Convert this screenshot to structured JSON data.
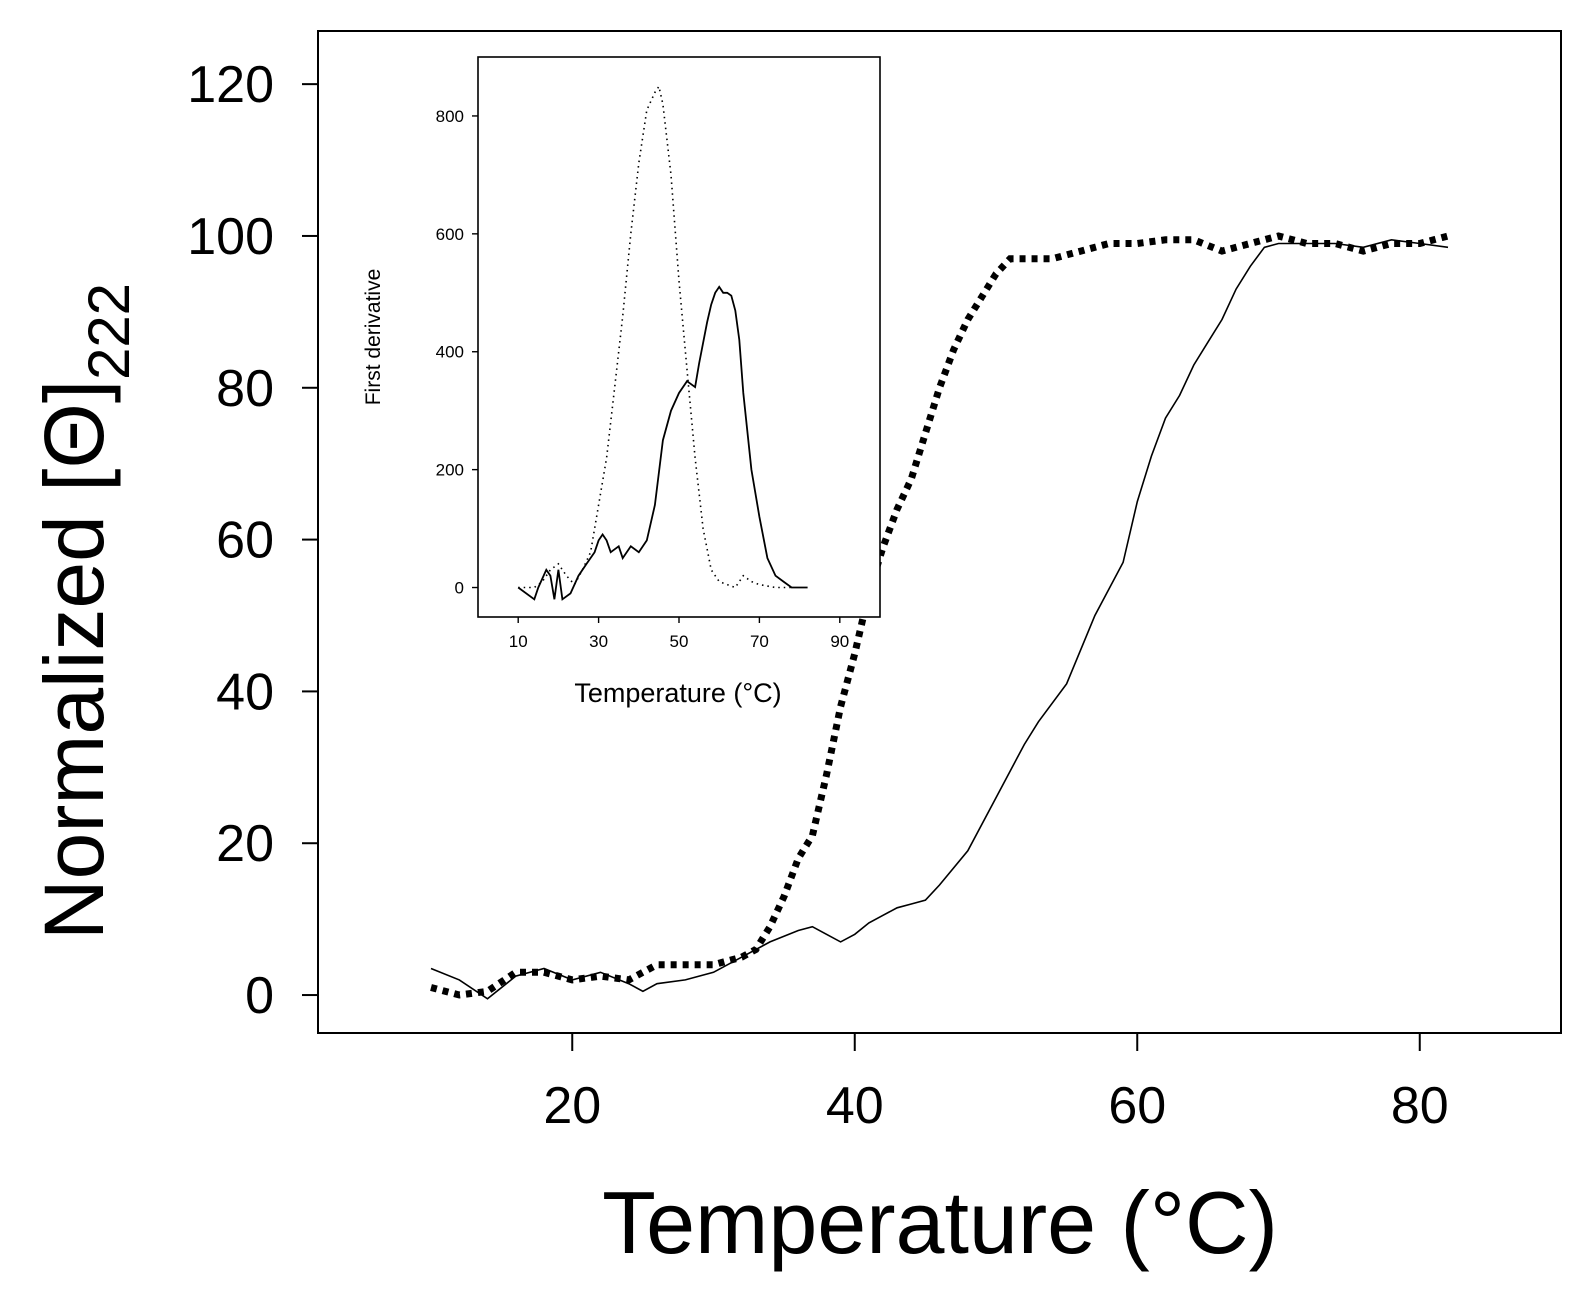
{
  "chart_data": [
    {
      "type": "line",
      "title": "",
      "xlabel": "Temperature (°C)",
      "ylabel": {
        "text": "Normalized [",
        "symbol": "Θ",
        "close": "]",
        "subscript": "222"
      },
      "xlim": [
        2,
        90
      ],
      "ylim": [
        -5,
        127
      ],
      "xticks": [
        20,
        40,
        60,
        80
      ],
      "yticks": [
        0,
        20,
        40,
        60,
        80,
        100,
        120
      ],
      "series": [
        {
          "name": "dotted",
          "style": "dotted",
          "x": [
            10,
            12,
            14,
            16,
            18,
            20,
            22,
            24,
            26,
            28,
            30,
            32,
            33,
            34,
            35,
            36,
            37,
            38,
            39,
            40,
            41,
            42,
            43,
            44,
            45,
            46,
            47,
            48,
            49,
            50,
            51,
            52,
            54,
            56,
            58,
            60,
            62,
            64,
            66,
            68,
            70,
            72,
            74,
            76,
            78,
            80,
            82
          ],
          "y": [
            1,
            0,
            0.5,
            3,
            3,
            2,
            2.5,
            2,
            4,
            4,
            4,
            5,
            6,
            9,
            13,
            18,
            21,
            29,
            38,
            45,
            53,
            59,
            64,
            68,
            74,
            80,
            85,
            89,
            92,
            95,
            97,
            97,
            97,
            98,
            99,
            99,
            99.5,
            99.5,
            98,
            99,
            100,
            99,
            99,
            98,
            99,
            99,
            100
          ]
        },
        {
          "name": "solid",
          "style": "solid",
          "x": [
            10,
            12,
            14,
            16,
            18,
            20,
            22,
            24,
            25,
            26,
            28,
            30,
            32,
            34,
            36,
            37,
            38,
            39,
            40,
            41,
            42,
            43,
            44,
            45,
            46,
            48,
            50,
            52,
            53,
            55,
            57,
            59,
            60,
            61,
            62,
            63,
            64,
            65,
            66,
            67,
            68,
            69,
            70,
            72,
            74,
            76,
            78,
            80,
            82
          ],
          "y": [
            3.5,
            2,
            -0.5,
            2.5,
            3.5,
            2,
            3,
            1.5,
            0.5,
            1.5,
            2,
            3,
            5,
            7,
            8.5,
            9,
            8,
            7,
            8,
            9.5,
            10.5,
            11.5,
            12,
            12.5,
            14.5,
            19,
            26,
            33,
            36,
            41,
            50,
            57,
            65,
            71,
            76,
            79,
            83,
            86,
            89,
            93,
            96,
            98.5,
            99,
            99,
            99,
            98.5,
            99.5,
            99,
            98.5
          ]
        }
      ]
    },
    {
      "type": "line",
      "title": "",
      "xlabel": "Temperature (°C)",
      "ylabel": "First derivative",
      "xlim": [
        0,
        100
      ],
      "ylim": [
        -50,
        900
      ],
      "xticks": [
        10,
        30,
        50,
        70,
        90
      ],
      "yticks": [
        0,
        200,
        400,
        600,
        800
      ],
      "series": [
        {
          "name": "dotted",
          "style": "dotted",
          "x": [
            10,
            14,
            16,
            18,
            20,
            22,
            24,
            26,
            28,
            30,
            32,
            34,
            36,
            38,
            40,
            42,
            44,
            45,
            46,
            48,
            50,
            52,
            54,
            56,
            58,
            60,
            62,
            64,
            66,
            68,
            70,
            74,
            78
          ],
          "y": [
            0,
            0,
            10,
            30,
            40,
            20,
            5,
            30,
            60,
            140,
            220,
            340,
            460,
            600,
            720,
            810,
            840,
            850,
            820,
            700,
            520,
            370,
            220,
            100,
            30,
            10,
            5,
            0,
            20,
            10,
            5,
            0,
            0
          ]
        },
        {
          "name": "solid",
          "style": "solid",
          "x": [
            10,
            14,
            15,
            17,
            18,
            19,
            20,
            21,
            23,
            25,
            27,
            29,
            30,
            31,
            32,
            33,
            35,
            36,
            38,
            40,
            42,
            44,
            46,
            48,
            50,
            52,
            54,
            55,
            57,
            58,
            59,
            60,
            61,
            62,
            63,
            64,
            65,
            66,
            68,
            70,
            72,
            74,
            76,
            78,
            80,
            82
          ],
          "y": [
            0,
            -20,
            0,
            30,
            20,
            -20,
            30,
            -20,
            -10,
            20,
            40,
            60,
            80,
            90,
            80,
            60,
            70,
            50,
            70,
            60,
            80,
            140,
            250,
            300,
            330,
            350,
            340,
            380,
            450,
            480,
            500,
            510,
            500,
            500,
            495,
            470,
            420,
            330,
            200,
            120,
            50,
            20,
            10,
            0,
            0,
            0
          ]
        }
      ]
    }
  ]
}
